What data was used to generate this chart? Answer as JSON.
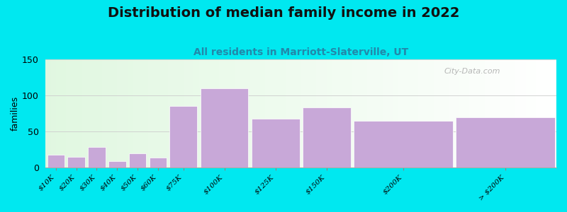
{
  "title": "Distribution of median family income in 2022",
  "subtitle": "All residents in Marriott-Slaterville, UT",
  "ylabel": "families",
  "categories": [
    "$10K",
    "$20K",
    "$30K",
    "$40K",
    "$50K",
    "$60K",
    "$75K",
    "$100K",
    "$125K",
    "$150K",
    "$200K",
    "> $200K"
  ],
  "values": [
    18,
    15,
    28,
    9,
    20,
    14,
    85,
    110,
    68,
    83,
    65,
    70
  ],
  "bar_left_edges": [
    0,
    10,
    20,
    30,
    40,
    50,
    60,
    75,
    100,
    125,
    150,
    200
  ],
  "bar_widths": [
    10,
    10,
    10,
    10,
    10,
    10,
    15,
    25,
    25,
    25,
    50,
    50
  ],
  "bar_color": "#c8a8d8",
  "ylim": [
    0,
    150
  ],
  "yticks": [
    0,
    50,
    100,
    150
  ],
  "background_color": "#00e8f0",
  "title_fontsize": 14,
  "subtitle_fontsize": 10,
  "watermark_text": "City-Data.com",
  "grid_color": "#cccccc",
  "subtitle_color": "#2288aa",
  "title_color": "#111111"
}
